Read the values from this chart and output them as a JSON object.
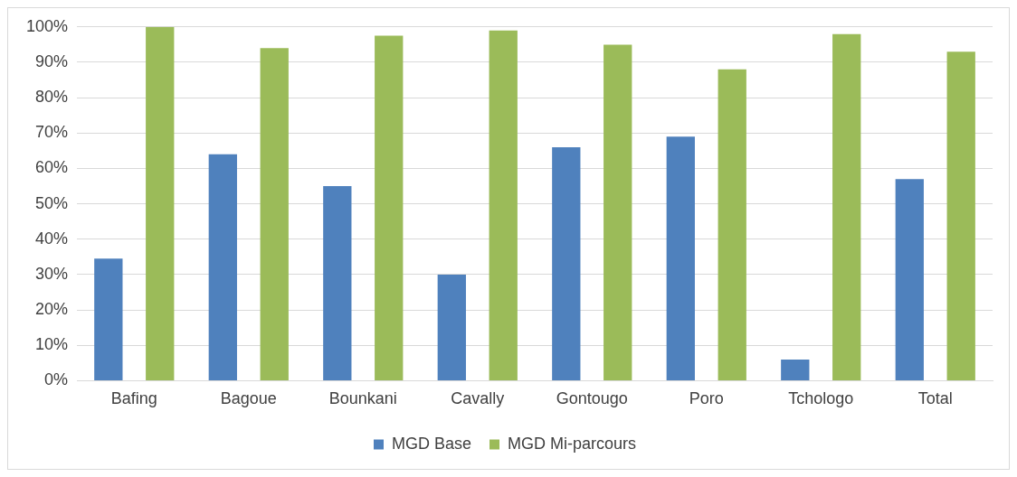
{
  "chart_data": {
    "type": "bar",
    "categories": [
      "Bafing",
      "Bagoue",
      "Bounkani",
      "Cavally",
      "Gontougo",
      "Poro",
      "Tchologo",
      "Total"
    ],
    "series": [
      {
        "name": "MGD Base",
        "color": "#4f81bd",
        "values": [
          34.5,
          64,
          55,
          30,
          66,
          69,
          6,
          57
        ]
      },
      {
        "name": "MGD Mi-parcours",
        "color": "#9bbb59",
        "values": [
          100,
          94,
          97.5,
          99,
          95,
          88,
          98,
          93
        ]
      }
    ],
    "ylim": [
      0,
      100
    ],
    "yticks": [
      {
        "value": 0,
        "label": "0%"
      },
      {
        "value": 10,
        "label": "10%"
      },
      {
        "value": 20,
        "label": "20%"
      },
      {
        "value": 30,
        "label": "30%"
      },
      {
        "value": 40,
        "label": "40%"
      },
      {
        "value": 50,
        "label": "50%"
      },
      {
        "value": 60,
        "label": "60%"
      },
      {
        "value": 70,
        "label": "70%"
      },
      {
        "value": 80,
        "label": "80%"
      },
      {
        "value": 90,
        "label": "90%"
      },
      {
        "value": 100,
        "label": "100%"
      }
    ],
    "grid": "y",
    "legend": "bottom"
  }
}
